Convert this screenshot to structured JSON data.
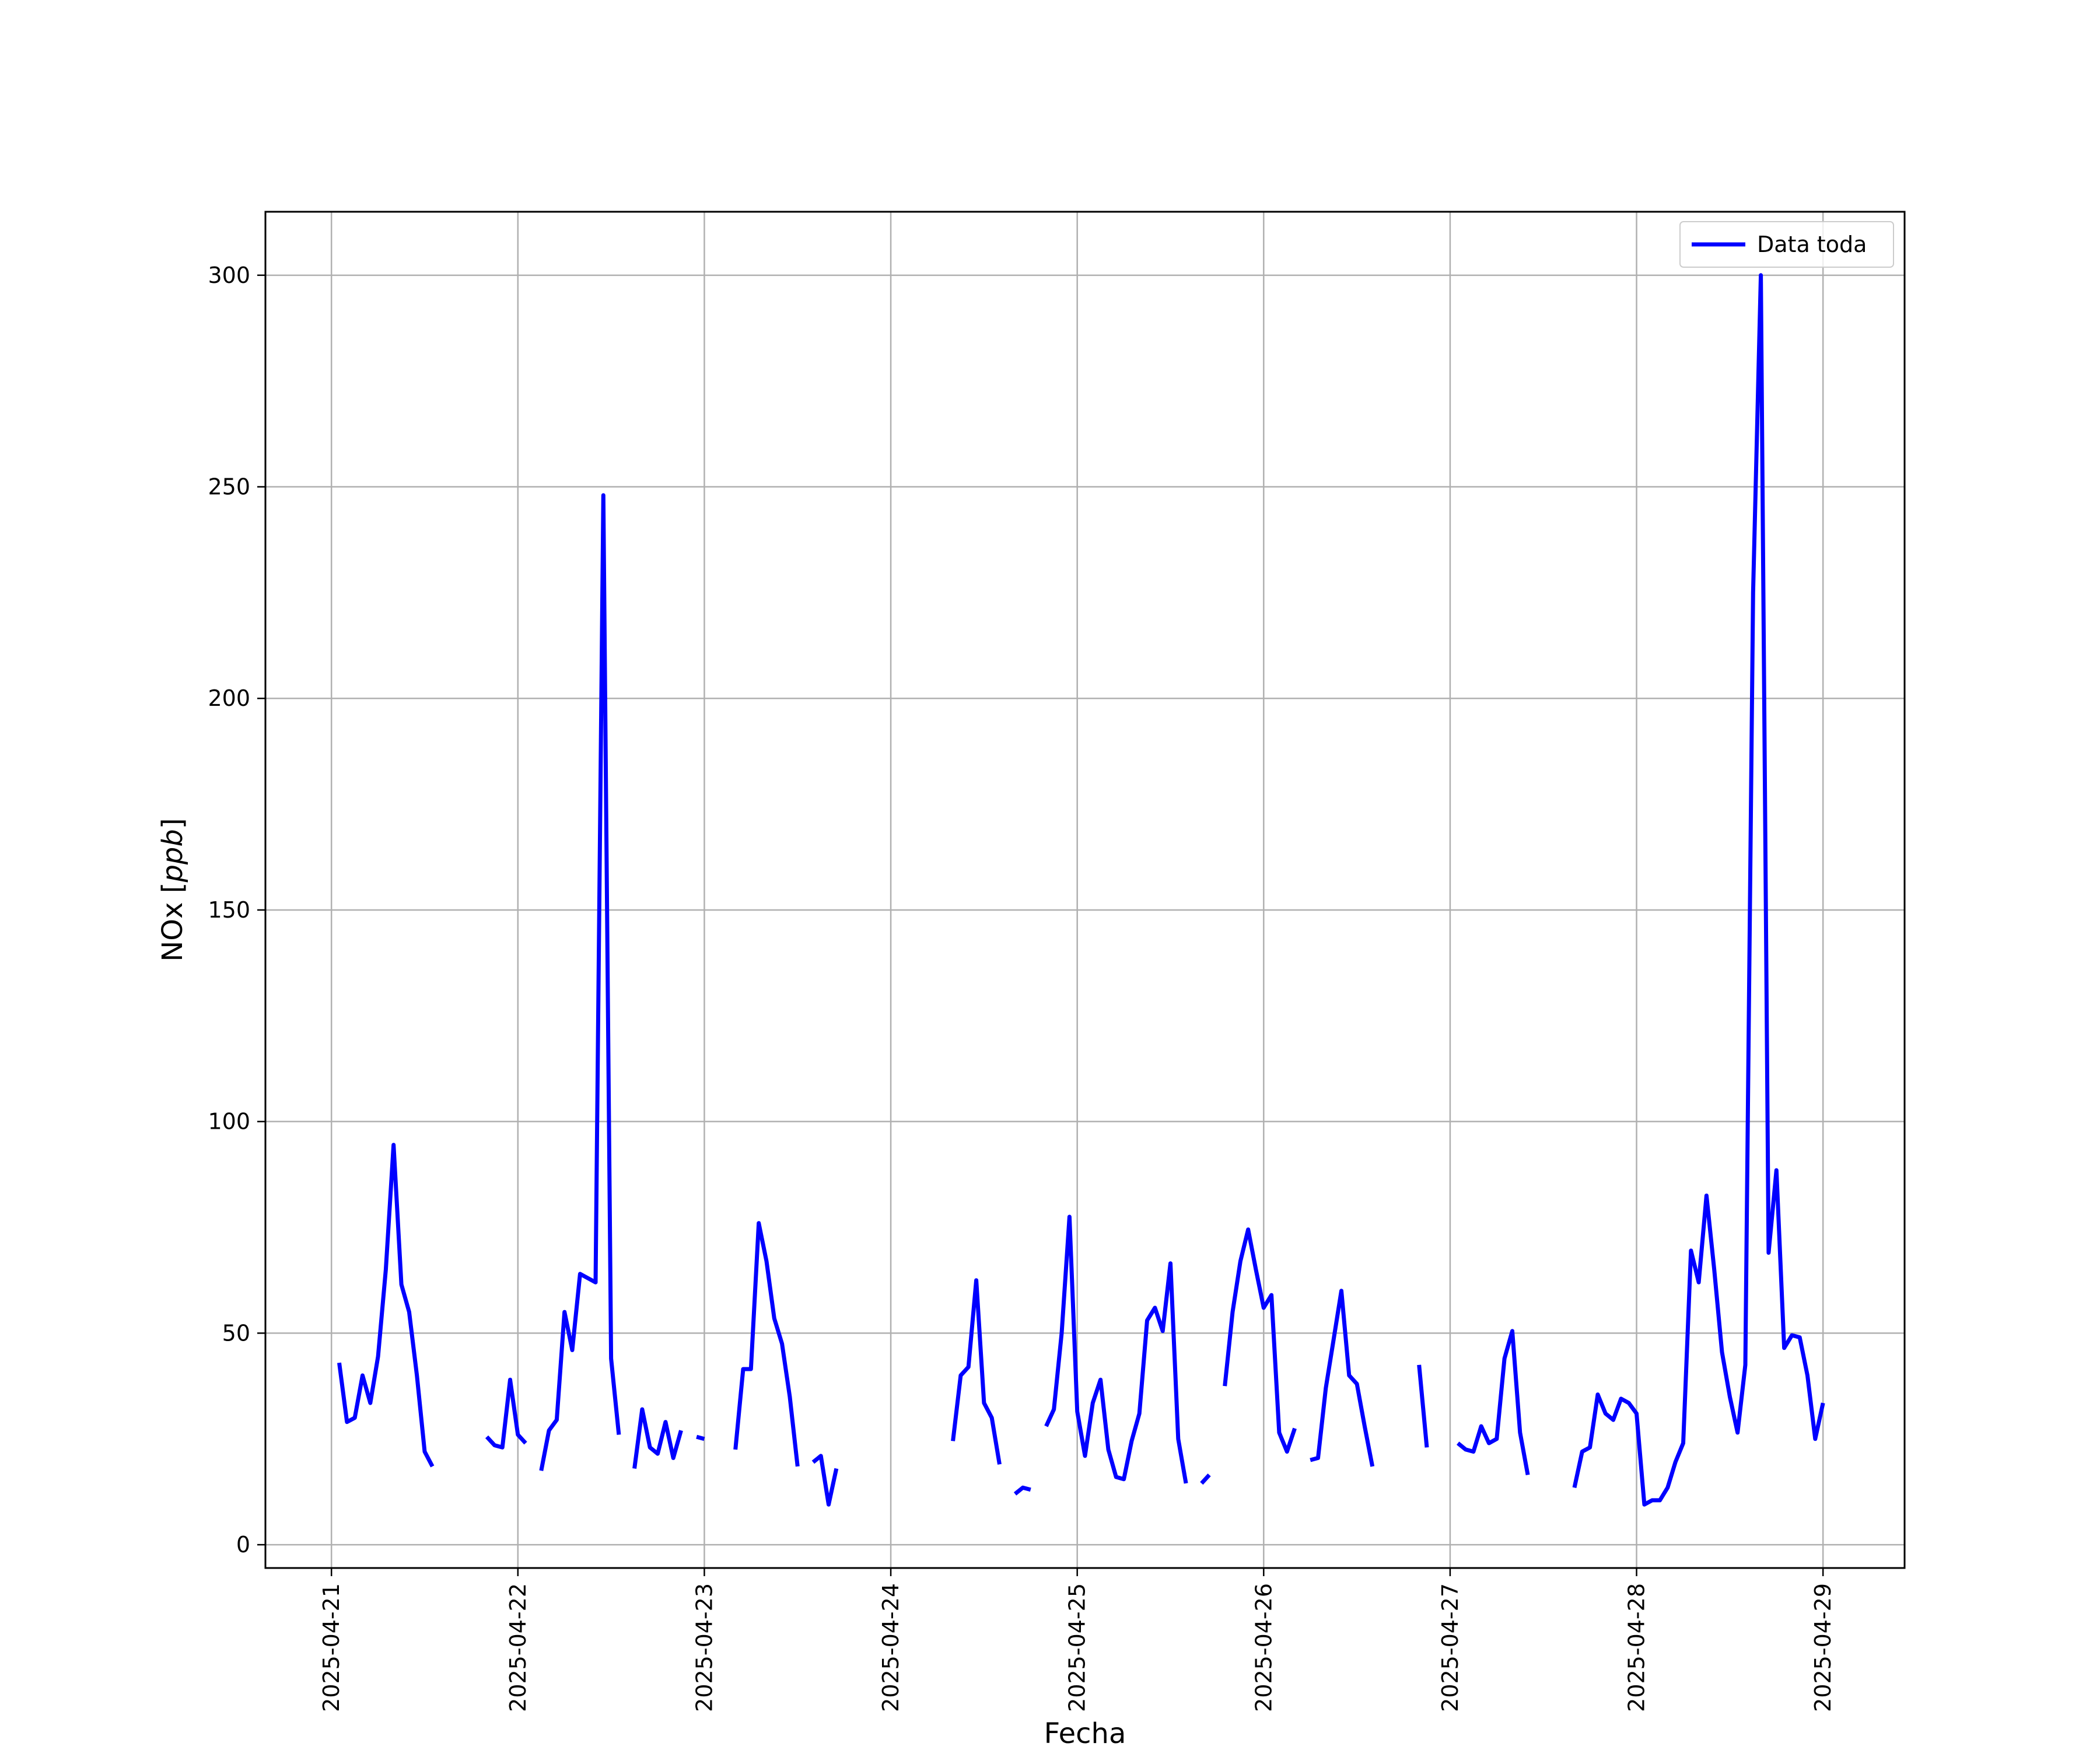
{
  "chart_data": {
    "type": "line",
    "title": "",
    "xlabel": "Fecha",
    "ylabel": "NOx [ppb]",
    "ylabel_main": "NOx [",
    "ylabel_unit": "ppb",
    "ylabel_close": "]",
    "x_ticks": [
      "2025-04-21",
      "2025-04-22",
      "2025-04-23",
      "2025-04-24",
      "2025-04-25",
      "2025-04-26",
      "2025-04-27",
      "2025-04-28",
      "2025-04-29"
    ],
    "y_ticks": [
      "0",
      "50",
      "100",
      "150",
      "200",
      "250",
      "300"
    ],
    "xlim": [
      "2025-04-20 15:30",
      "2025-04-29 10:30"
    ],
    "ylim": [
      -5.5,
      315
    ],
    "grid": true,
    "legend_position": "upper right",
    "series": [
      {
        "name": "Data toda",
        "color": "#0000ff",
        "segments": [
          [
            [
              "2025-04-21 01:00",
              43
            ],
            [
              "2025-04-21 02:00",
              29
            ],
            [
              "2025-04-21 03:00",
              30
            ],
            [
              "2025-04-21 04:00",
              40
            ],
            [
              "2025-04-21 05:00",
              33.5
            ],
            [
              "2025-04-21 06:00",
              44.5
            ],
            [
              "2025-04-21 07:00",
              65
            ],
            [
              "2025-04-21 08:00",
              94.5
            ],
            [
              "2025-04-21 09:00",
              61.5
            ],
            [
              "2025-04-21 10:00",
              55
            ],
            [
              "2025-04-21 11:00",
              40
            ],
            [
              "2025-04-21 12:00",
              22
            ],
            [
              "2025-04-21 13:00",
              18.5
            ]
          ],
          [
            [
              "2025-04-21 20:00",
              25.5
            ],
            [
              "2025-04-21 21:00",
              23.5
            ],
            [
              "2025-04-21 22:00",
              23
            ],
            [
              "2025-04-21 23:00",
              39
            ],
            [
              "2025-04-22 00:00",
              26
            ],
            [
              "2025-04-22 01:00",
              24
            ]
          ],
          [
            [
              "2025-04-22 03:00",
              17.5
            ],
            [
              "2025-04-22 04:00",
              27
            ],
            [
              "2025-04-22 05:00",
              29.5
            ],
            [
              "2025-04-22 06:00",
              55
            ],
            [
              "2025-04-22 07:00",
              46
            ],
            [
              "2025-04-22 08:00",
              64
            ],
            [
              "2025-04-22 09:00",
              63
            ],
            [
              "2025-04-22 10:00",
              62
            ],
            [
              "2025-04-22 11:00",
              248
            ],
            [
              "2025-04-22 12:00",
              44
            ],
            [
              "2025-04-22 13:00",
              26
            ]
          ],
          [
            [
              "2025-04-22 15:00",
              18
            ],
            [
              "2025-04-22 16:00",
              32
            ],
            [
              "2025-04-22 17:00",
              23
            ],
            [
              "2025-04-22 18:00",
              21.5
            ],
            [
              "2025-04-22 19:00",
              29
            ],
            [
              "2025-04-22 20:00",
              20.5
            ],
            [
              "2025-04-22 21:00",
              27
            ]
          ],
          [
            [
              "2025-04-22 23:00",
              25.5
            ],
            [
              "2025-04-23 00:00",
              25
            ]
          ],
          [
            [
              "2025-04-23 04:00",
              22.5
            ],
            [
              "2025-04-23 05:00",
              41.5
            ],
            [
              "2025-04-23 06:00",
              41.5
            ],
            [
              "2025-04-23 07:00",
              76
            ],
            [
              "2025-04-23 08:00",
              67
            ],
            [
              "2025-04-23 09:00",
              53.5
            ],
            [
              "2025-04-23 10:00",
              47.5
            ],
            [
              "2025-04-23 11:00",
              35
            ],
            [
              "2025-04-23 12:00",
              18.5
            ]
          ],
          [
            [
              "2025-04-23 14:00",
              19.5
            ],
            [
              "2025-04-23 15:00",
              21
            ],
            [
              "2025-04-23 16:00",
              9.5
            ],
            [
              "2025-04-23 17:00",
              18
            ]
          ],
          [
            [
              "2025-04-24 08:00",
              24.5
            ],
            [
              "2025-04-24 09:00",
              40
            ],
            [
              "2025-04-24 10:00",
              42
            ],
            [
              "2025-04-24 11:00",
              62.5
            ],
            [
              "2025-04-24 12:00",
              33.5
            ],
            [
              "2025-04-24 13:00",
              30
            ],
            [
              "2025-04-24 14:00",
              19
            ]
          ],
          [
            [
              "2025-04-24 16:00",
              12
            ],
            [
              "2025-04-24 17:00",
              13.5
            ],
            [
              "2025-04-24 18:00",
              13
            ]
          ],
          [
            [
              "2025-04-24 20:00",
              28
            ],
            [
              "2025-04-24 21:00",
              32
            ],
            [
              "2025-04-24 22:00",
              50
            ],
            [
              "2025-04-24 23:00",
              77.5
            ],
            [
              "2025-04-25 00:00",
              31.5
            ],
            [
              "2025-04-25 01:00",
              21
            ],
            [
              "2025-04-25 02:00",
              33.5
            ],
            [
              "2025-04-25 03:00",
              39
            ],
            [
              "2025-04-25 04:00",
              22.5
            ],
            [
              "2025-04-25 05:00",
              16
            ],
            [
              "2025-04-25 06:00",
              15.5
            ],
            [
              "2025-04-25 07:00",
              24.5
            ],
            [
              "2025-04-25 08:00",
              31
            ],
            [
              "2025-04-25 09:00",
              53
            ],
            [
              "2025-04-25 10:00",
              56
            ],
            [
              "2025-04-25 11:00",
              50.5
            ],
            [
              "2025-04-25 12:00",
              66.5
            ],
            [
              "2025-04-25 13:00",
              25
            ],
            [
              "2025-04-25 14:00",
              14.5
            ]
          ],
          [
            [
              "2025-04-25 16:00",
              14.5
            ],
            [
              "2025-04-25 17:00",
              16.5
            ]
          ],
          [
            [
              "2025-04-25 19:00",
              37.5
            ],
            [
              "2025-04-25 20:00",
              55
            ],
            [
              "2025-04-25 21:00",
              67
            ],
            [
              "2025-04-25 22:00",
              74.5
            ],
            [
              "2025-04-25 23:00",
              65
            ],
            [
              "2025-04-26 00:00",
              56
            ],
            [
              "2025-04-26 01:00",
              59
            ],
            [
              "2025-04-26 02:00",
              26.5
            ],
            [
              "2025-04-26 03:00",
              22
            ],
            [
              "2025-04-26 04:00",
              27.5
            ]
          ],
          [
            [
              "2025-04-26 06:00",
              20
            ],
            [
              "2025-04-26 07:00",
              20.5
            ],
            [
              "2025-04-26 08:00",
              37
            ],
            [
              "2025-04-26 09:00",
              48.5
            ],
            [
              "2025-04-26 10:00",
              60
            ],
            [
              "2025-04-26 11:00",
              40
            ],
            [
              "2025-04-26 12:00",
              38
            ],
            [
              "2025-04-26 13:00",
              28
            ],
            [
              "2025-04-26 14:00",
              18.5
            ]
          ],
          [
            [
              "2025-04-26 20:00",
              42.5
            ],
            [
              "2025-04-26 21:00",
              23
            ]
          ],
          [
            [
              "2025-04-27 01:00",
              24
            ],
            [
              "2025-04-27 02:00",
              22.5
            ],
            [
              "2025-04-27 03:00",
              22
            ],
            [
              "2025-04-27 04:00",
              28
            ],
            [
              "2025-04-27 05:00",
              24
            ],
            [
              "2025-04-27 06:00",
              25
            ],
            [
              "2025-04-27 07:00",
              44
            ],
            [
              "2025-04-27 08:00",
              50.5
            ],
            [
              "2025-04-27 09:00",
              26.5
            ],
            [
              "2025-04-27 10:00",
              16.5
            ]
          ],
          [
            [
              "2025-04-27 16:00",
              13.5
            ],
            [
              "2025-04-27 17:00",
              22
            ],
            [
              "2025-04-27 18:00",
              23
            ],
            [
              "2025-04-27 19:00",
              35.5
            ],
            [
              "2025-04-27 20:00",
              31
            ],
            [
              "2025-04-27 21:00",
              29.5
            ],
            [
              "2025-04-27 22:00",
              34.5
            ],
            [
              "2025-04-27 23:00",
              33.5
            ],
            [
              "2025-04-28 00:00",
              31
            ],
            [
              "2025-04-28 01:00",
              9.5
            ],
            [
              "2025-04-28 02:00",
              10.5
            ],
            [
              "2025-04-28 03:00",
              10.5
            ],
            [
              "2025-04-28 04:00",
              13.5
            ],
            [
              "2025-04-28 05:00",
              19.5
            ],
            [
              "2025-04-28 06:00",
              24
            ],
            [
              "2025-04-28 07:00",
              69.5
            ],
            [
              "2025-04-28 08:00",
              62
            ],
            [
              "2025-04-28 09:00",
              82.5
            ],
            [
              "2025-04-28 10:00",
              65
            ],
            [
              "2025-04-28 11:00",
              45.5
            ],
            [
              "2025-04-28 12:00",
              35
            ],
            [
              "2025-04-28 13:00",
              26.5
            ],
            [
              "2025-04-28 14:00",
              42.5
            ],
            [
              "2025-04-28 15:00",
              225
            ],
            [
              "2025-04-28 16:00",
              300
            ],
            [
              "2025-04-28 17:00",
              69
            ],
            [
              "2025-04-28 18:00",
              88.5
            ],
            [
              "2025-04-28 19:00",
              46.5
            ],
            [
              "2025-04-28 20:00",
              49.5
            ],
            [
              "2025-04-28 21:00",
              49
            ],
            [
              "2025-04-28 22:00",
              40
            ],
            [
              "2025-04-28 23:00",
              25
            ],
            [
              "2025-04-29 00:00",
              33.5
            ]
          ]
        ]
      }
    ]
  }
}
